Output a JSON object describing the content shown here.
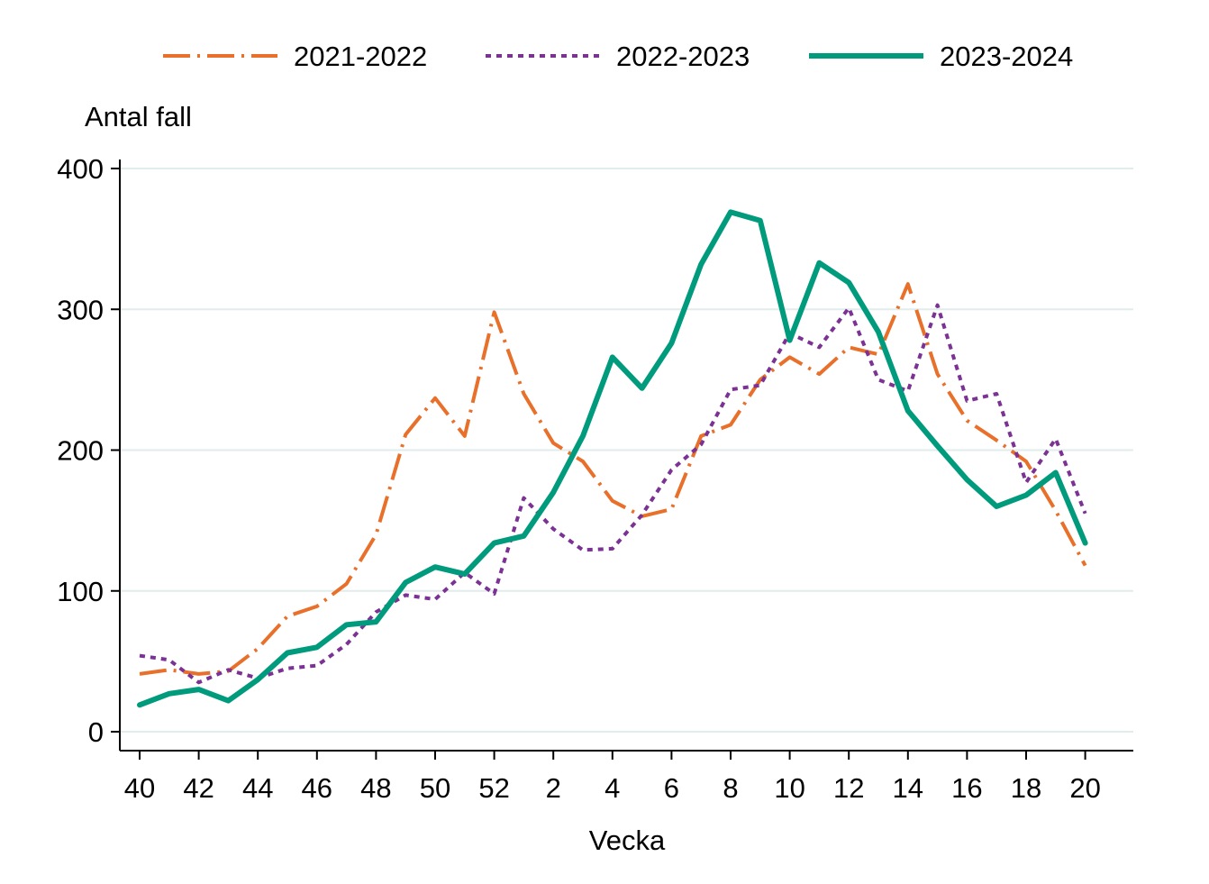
{
  "chart_data": {
    "type": "line",
    "title": "",
    "xlabel": "Vecka",
    "ylabel": "Antal fall",
    "ylim": [
      0,
      400
    ],
    "yticks": [
      0,
      100,
      200,
      300,
      400
    ],
    "x_tick_labels": [
      "40",
      "42",
      "44",
      "46",
      "48",
      "50",
      "52",
      "2",
      "4",
      "6",
      "8",
      "10",
      "12",
      "14",
      "16",
      "18",
      "20"
    ],
    "weeks": [
      40,
      41,
      42,
      43,
      44,
      45,
      46,
      47,
      48,
      49,
      50,
      51,
      52,
      1,
      2,
      3,
      4,
      5,
      6,
      7,
      8,
      9,
      10,
      11,
      12,
      13,
      14,
      15,
      16,
      17,
      18,
      19,
      20
    ],
    "grid": "horizontal",
    "legend_position": "top",
    "series": [
      {
        "name": "2021-2022",
        "color": "#E8702A",
        "style": "dash-dot",
        "values": [
          41,
          44,
          41,
          43,
          59,
          82,
          89,
          105,
          140,
          211,
          237,
          210,
          298,
          240,
          205,
          192,
          164,
          153,
          158,
          210,
          218,
          250,
          266,
          254,
          273,
          268,
          318,
          254,
          221,
          207,
          192,
          157,
          118
        ]
      },
      {
        "name": "2022-2023",
        "color": "#7B3294",
        "style": "dotted",
        "values": [
          54,
          51,
          35,
          44,
          38,
          45,
          47,
          62,
          85,
          97,
          94,
          113,
          98,
          166,
          144,
          129,
          130,
          154,
          186,
          204,
          243,
          246,
          283,
          273,
          301,
          250,
          242,
          303,
          235,
          240,
          177,
          208,
          155
        ]
      },
      {
        "name": "2023-2024",
        "color": "#009B7D",
        "style": "solid",
        "values": [
          19,
          27,
          30,
          22,
          37,
          56,
          60,
          76,
          78,
          106,
          117,
          112,
          134,
          139,
          170,
          210,
          266,
          244,
          276,
          332,
          369,
          363,
          278,
          333,
          319,
          284,
          228,
          203,
          179,
          160,
          168,
          184,
          134
        ]
      }
    ]
  }
}
